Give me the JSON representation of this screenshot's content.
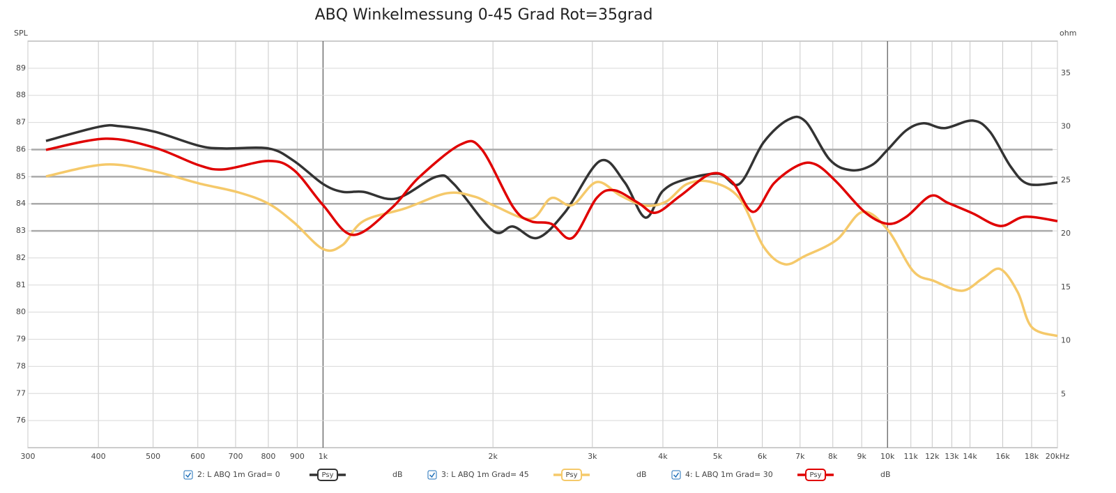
{
  "chart_data": {
    "type": "line",
    "title": "ABQ Winkelmessung 0-45 Grad Rot=35grad",
    "y_label": "SPL",
    "y2_label": "ohm",
    "xscale": "log",
    "grid": true,
    "xlim": [
      300,
      20000
    ],
    "ylim": [
      75,
      90
    ],
    "y2lim": [
      0,
      38
    ],
    "xticks": [
      300,
      400,
      500,
      600,
      700,
      800,
      900,
      {
        "value": 1000,
        "label": "1k"
      },
      {
        "value": 2000,
        "label": "2k"
      },
      {
        "value": 3000,
        "label": "3k"
      },
      {
        "value": 4000,
        "label": "4k"
      },
      {
        "value": 5000,
        "label": "5k"
      },
      {
        "value": 6000,
        "label": "6k"
      },
      {
        "value": 7000,
        "label": "7k"
      },
      {
        "value": 8000,
        "label": "8k"
      },
      {
        "value": 9000,
        "label": "9k"
      },
      {
        "value": 10000,
        "label": "10k"
      },
      {
        "value": 11000,
        "label": "11k"
      },
      {
        "value": 12000,
        "label": "12k"
      },
      {
        "value": 13000,
        "label": "13k"
      },
      {
        "value": 14000,
        "label": "14k"
      },
      {
        "value": 16000,
        "label": "16k"
      },
      {
        "value": 18000,
        "label": "18k"
      },
      {
        "value": 20000,
        "label": "20kHz"
      }
    ],
    "yticks": [
      76,
      77,
      78,
      79,
      80,
      81,
      82,
      83,
      84,
      85,
      86,
      87,
      88,
      89
    ],
    "y2ticks": [
      5,
      10,
      15,
      20,
      25,
      30,
      35
    ],
    "reference_lines": [
      86,
      85,
      84,
      83
    ],
    "series": [
      {
        "name": "2: L ABQ 1m Grad= 0",
        "color": "#333333",
        "smoothing": "Psy",
        "unit": "dB",
        "x": [
          323,
          401,
          437,
          503,
          603,
          668,
          801,
          888,
          1000,
          1083,
          1179,
          1347,
          1589,
          1705,
          2000,
          2171,
          2398,
          2686,
          3096,
          3420,
          3723,
          3998,
          4354,
          5017,
          5464,
          6034,
          6665,
          7153,
          7898,
          8602,
          9368,
          10000,
          10797,
          11590,
          12621,
          14140,
          15182,
          16527,
          17750,
          20000
        ],
        "values": [
          86.32,
          86.84,
          86.86,
          86.66,
          86.14,
          86.04,
          86.04,
          85.58,
          84.73,
          84.44,
          84.44,
          84.19,
          85.0,
          84.73,
          83.0,
          83.16,
          82.74,
          83.7,
          85.58,
          84.8,
          83.49,
          84.47,
          84.88,
          85.11,
          84.73,
          86.27,
          87.1,
          87.04,
          85.63,
          85.24,
          85.42,
          85.99,
          86.71,
          86.97,
          86.79,
          87.07,
          86.66,
          85.37,
          84.73,
          84.78
        ]
      },
      {
        "name": "3: L ABQ 1m Grad= 45",
        "color": "#f5c96a",
        "smoothing": "Psy",
        "unit": "dB",
        "x": [
          323,
          412,
          503,
          603,
          708,
          801,
          888,
          1000,
          1083,
          1179,
          1398,
          1658,
          1857,
          2000,
          2331,
          2537,
          2764,
          3052,
          3372,
          3723,
          4055,
          4416,
          4876,
          5464,
          6034,
          6570,
          7153,
          8128,
          9029,
          10000,
          11108,
          12095,
          13550,
          14756,
          15840,
          17006,
          18005,
          20000
        ],
        "values": [
          85.01,
          85.45,
          85.19,
          84.75,
          84.42,
          84.0,
          83.31,
          82.33,
          82.48,
          83.36,
          83.83,
          84.39,
          84.26,
          83.95,
          83.44,
          84.21,
          83.95,
          84.8,
          84.29,
          83.93,
          84.08,
          84.73,
          84.8,
          84.21,
          82.41,
          81.77,
          82.08,
          82.67,
          83.7,
          83.05,
          81.51,
          81.15,
          80.79,
          81.25,
          81.59,
          80.74,
          79.45,
          79.12
        ]
      },
      {
        "name": "4: L ABQ 1m Grad= 30",
        "color": "#e00000",
        "smoothing": "Psy",
        "unit": "dB",
        "x": [
          323,
          412,
          503,
          603,
          668,
          801,
          888,
          1000,
          1130,
          1321,
          1480,
          1754,
          1910,
          2171,
          2331,
          2537,
          2764,
          3052,
          3277,
          3619,
          3886,
          4292,
          4876,
          5309,
          5781,
          6295,
          6953,
          7464,
          8128,
          9106,
          10000,
          10797,
          11924,
          12802,
          14140,
          15840,
          17495,
          20000
        ],
        "values": [
          85.99,
          86.4,
          86.07,
          85.42,
          85.27,
          85.58,
          85.24,
          83.95,
          82.85,
          83.83,
          84.98,
          86.19,
          86.01,
          83.88,
          83.36,
          83.26,
          82.74,
          84.21,
          84.5,
          84.03,
          83.67,
          84.29,
          85.11,
          84.8,
          83.7,
          84.76,
          85.42,
          85.45,
          84.8,
          83.7,
          83.26,
          83.52,
          84.29,
          84.03,
          83.65,
          83.18,
          83.52,
          83.36
        ]
      }
    ]
  }
}
